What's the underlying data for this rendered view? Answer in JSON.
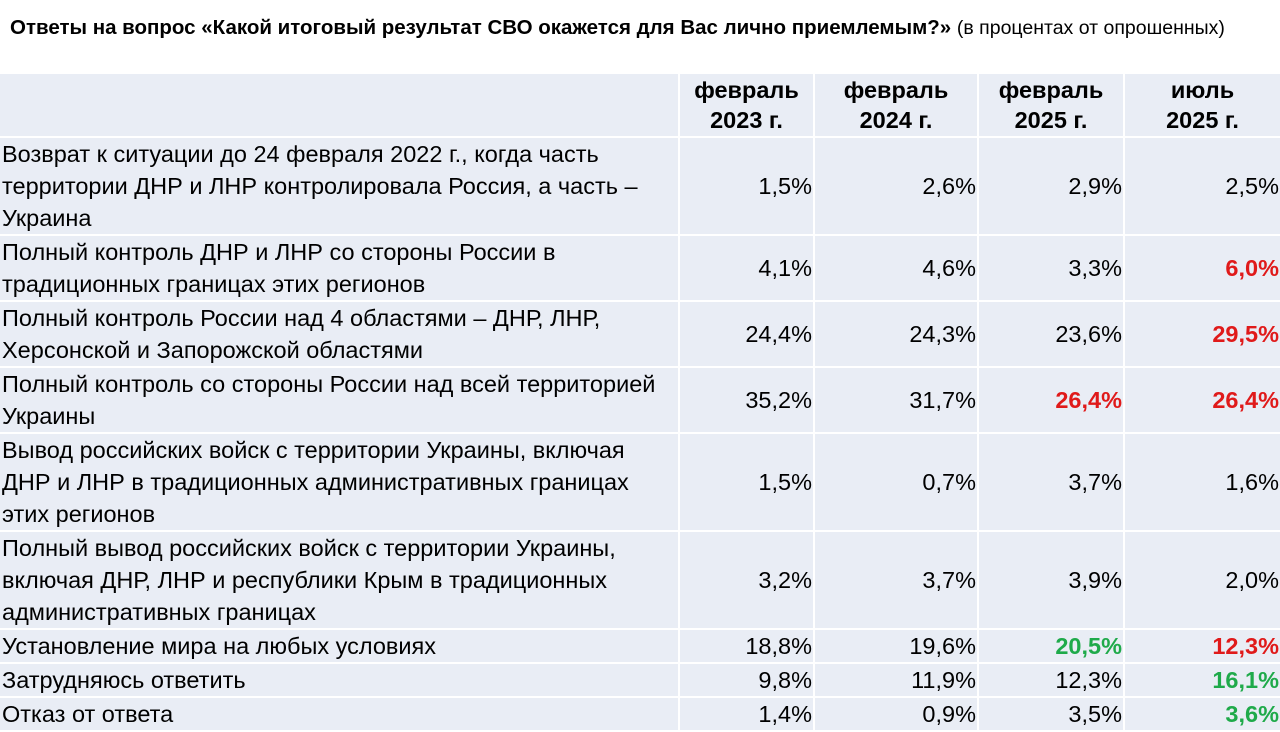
{
  "title": {
    "main": "Ответы на вопрос «Какой итоговый результат СВО окажется для Вас лично приемлемым?»",
    "note": "(в процентах от опрошенных)"
  },
  "colors": {
    "highlight_red": "#e01a1a",
    "highlight_green": "#1faa4a",
    "cell_background": "#e9edf5"
  },
  "chart_data": {
    "type": "table",
    "columns": [
      "",
      "февраль 2023 г.",
      "февраль 2024 г.",
      "февраль 2025 г.",
      "июль 2025 г."
    ],
    "rows": [
      {
        "label": "Возврат к ситуации до 24 февраля 2022 г., когда часть территории ДНР и ЛНР контролировала Россия, а часть – Украина",
        "values": [
          "1,5%",
          "2,6%",
          "2,9%",
          "2,5%"
        ],
        "highlight": [
          "",
          "",
          "",
          ""
        ]
      },
      {
        "label": "Полный контроль ДНР и ЛНР со стороны России в традиционных границах этих регионов",
        "values": [
          "4,1%",
          "4,6%",
          "3,3%",
          "6,0%"
        ],
        "highlight": [
          "",
          "",
          "",
          "red"
        ]
      },
      {
        "label": "Полный контроль России над 4 областями – ДНР, ЛНР, Херсонской и Запорожской областями",
        "values": [
          "24,4%",
          "24,3%",
          "23,6%",
          "29,5%"
        ],
        "highlight": [
          "",
          "",
          "",
          "red"
        ]
      },
      {
        "label": "Полный контроль со стороны России над всей территорией Украины",
        "values": [
          "35,2%",
          "31,7%",
          "26,4%",
          "26,4%"
        ],
        "highlight": [
          "",
          "",
          "red",
          "red"
        ]
      },
      {
        "label": "Вывод российских войск с территории Украины, включая ДНР и ЛНР в традиционных административных границах этих регионов",
        "values": [
          "1,5%",
          "0,7%",
          "3,7%",
          "1,6%"
        ],
        "highlight": [
          "",
          "",
          "",
          ""
        ]
      },
      {
        "label": "Полный вывод российских войск с территории Украины, включая ДНР, ЛНР и республики Крым в традиционных административных границах",
        "values": [
          "3,2%",
          "3,7%",
          "3,9%",
          "2,0%"
        ],
        "highlight": [
          "",
          "",
          "",
          ""
        ]
      },
      {
        "label": "Установление мира на любых условиях",
        "values": [
          "18,8%",
          "19,6%",
          "20,5%",
          "12,3%"
        ],
        "highlight": [
          "",
          "",
          "green",
          "red"
        ]
      },
      {
        "label": "Затрудняюсь ответить",
        "values": [
          "9,8%",
          "11,9%",
          "12,3%",
          "16,1%"
        ],
        "highlight": [
          "",
          "",
          "",
          "green"
        ]
      },
      {
        "label": "Отказ от ответа",
        "values": [
          "1,4%",
          "0,9%",
          "3,5%",
          "3,6%"
        ],
        "highlight": [
          "",
          "",
          "",
          "green"
        ]
      }
    ]
  }
}
